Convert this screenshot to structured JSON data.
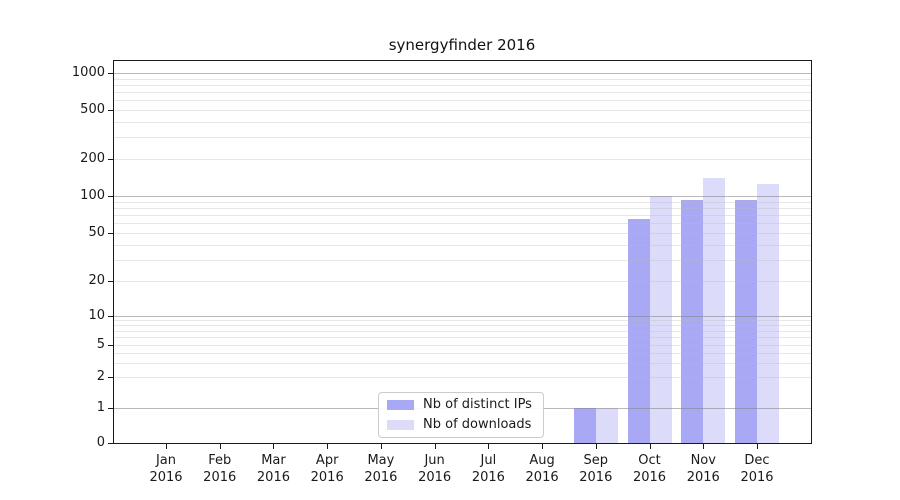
{
  "chart_data": {
    "type": "bar",
    "title": "synergyfinder 2016",
    "categories": [
      "Jan",
      "Feb",
      "Mar",
      "Apr",
      "May",
      "Jun",
      "Jul",
      "Aug",
      "Sep",
      "Oct",
      "Nov",
      "Dec"
    ],
    "year": "2016",
    "series": [
      {
        "name": "Nb of distinct IPs",
        "color": "#a8a8f5",
        "values": [
          0,
          0,
          0,
          0,
          0,
          0,
          0,
          0,
          1,
          65,
          93,
          93
        ]
      },
      {
        "name": "Nb of downloads",
        "color": "#dcdcfa",
        "values": [
          0,
          0,
          0,
          0,
          0,
          0,
          0,
          0,
          1,
          100,
          140,
          125
        ]
      }
    ],
    "yticks": [
      0,
      1,
      2,
      5,
      10,
      20,
      50,
      100,
      200,
      500,
      1000
    ],
    "ytick_labels": [
      "0",
      "1",
      "2",
      "5",
      "10",
      "20",
      "50",
      "100",
      "200",
      "500",
      "1000"
    ],
    "ylim": [
      0,
      1300
    ],
    "yscale": "log above 1, linear 0-1",
    "grid": "horizontal, minor light + major darker at 1/10/100/1000, drawn over bars",
    "legend_position": "inside lower center-left",
    "xlabel": "",
    "ylabel": ""
  }
}
